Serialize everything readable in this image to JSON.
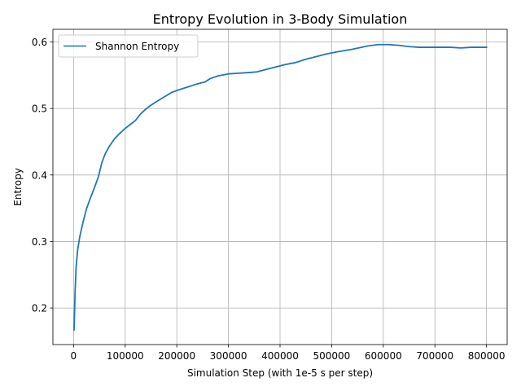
{
  "chart_data": {
    "type": "line",
    "title": "Entropy Evolution in 3-Body Simulation",
    "xlabel": "Simulation Step (with 1e-5 s per step)",
    "ylabel": "Entropy",
    "xlim": [
      -40000,
      840000
    ],
    "ylim": [
      0.145,
      0.619
    ],
    "xticks": [
      0,
      100000,
      200000,
      300000,
      400000,
      500000,
      600000,
      700000,
      800000
    ],
    "xtick_labels": [
      "0",
      "100000",
      "200000",
      "300000",
      "400000",
      "500000",
      "600000",
      "700000",
      "800000"
    ],
    "yticks": [
      0.2,
      0.3,
      0.4,
      0.5,
      0.6
    ],
    "ytick_labels": [
      "0.2",
      "0.3",
      "0.4",
      "0.5",
      "0.6"
    ],
    "grid": true,
    "legend_position": "top-left",
    "series": [
      {
        "name": "Shannon Entropy",
        "color": "#1f77b4",
        "x": [
          1000,
          3000,
          5000,
          8000,
          12000,
          18000,
          25000,
          32000,
          40000,
          48000,
          55000,
          62000,
          70000,
          80000,
          90000,
          100000,
          110000,
          120000,
          130000,
          140000,
          150000,
          160000,
          175000,
          190000,
          200000,
          220000,
          240000,
          255000,
          265000,
          280000,
          300000,
          320000,
          340000,
          355000,
          370000,
          390000,
          410000,
          430000,
          450000,
          470000,
          490000,
          510000,
          540000,
          570000,
          590000,
          610000,
          630000,
          650000,
          670000,
          690000,
          710000,
          730000,
          750000,
          770000,
          800000
        ],
        "y": [
          0.167,
          0.225,
          0.262,
          0.288,
          0.307,
          0.328,
          0.349,
          0.364,
          0.38,
          0.397,
          0.419,
          0.433,
          0.444,
          0.455,
          0.463,
          0.47,
          0.476,
          0.482,
          0.492,
          0.499,
          0.505,
          0.51,
          0.517,
          0.524,
          0.527,
          0.532,
          0.537,
          0.54,
          0.545,
          0.549,
          0.552,
          0.553,
          0.554,
          0.555,
          0.558,
          0.562,
          0.566,
          0.569,
          0.574,
          0.578,
          0.582,
          0.585,
          0.589,
          0.594,
          0.596,
          0.596,
          0.595,
          0.593,
          0.592,
          0.592,
          0.592,
          0.592,
          0.591,
          0.592,
          0.592
        ]
      }
    ]
  }
}
